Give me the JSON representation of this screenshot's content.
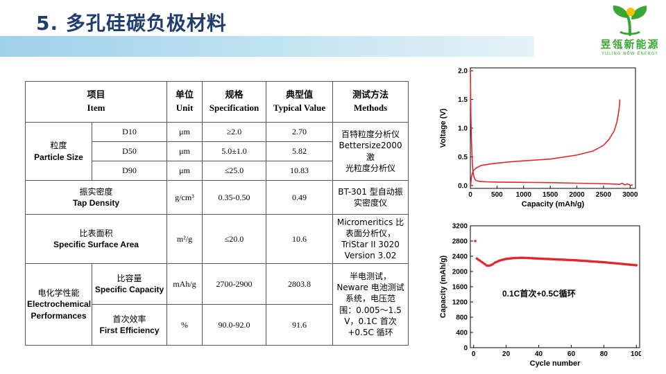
{
  "slide": {
    "title": "5. 多孔硅碳负极材料"
  },
  "logo": {
    "name_cn": "昱瓴新能源",
    "name_en": "YULING NEW ENERGY",
    "colors": {
      "green": "#3ba635",
      "yellow": "#f2c400"
    }
  },
  "table": {
    "headers": [
      {
        "cn": "项目",
        "en": "Item"
      },
      {
        "cn": "单位",
        "en": "Unit"
      },
      {
        "cn": "规格",
        "en": "Specification"
      },
      {
        "cn": "典型值",
        "en": "Typical Value"
      },
      {
        "cn": "测试方法",
        "en": "Methods"
      }
    ],
    "particle_size": {
      "item_cn": "粒度",
      "item_en": "Particle Size",
      "method": [
        "百特粒度分析仪",
        "Bettersize2000 激",
        "光粒度分析仪"
      ],
      "rows": [
        {
          "sub": "D10",
          "unit": "μm",
          "spec": "≥2.0",
          "value": "2.70"
        },
        {
          "sub": "D50",
          "unit": "μm",
          "spec": "5.0±1.0",
          "value": "5.82"
        },
        {
          "sub": "D90",
          "unit": "μm",
          "spec": "≤25.0",
          "value": "10.83"
        }
      ]
    },
    "tap_density": {
      "item_cn": "振实密度",
      "item_en": "Tap Density",
      "unit": "g/cm³",
      "spec": "0.35-0.50",
      "value": "0.49",
      "method": [
        "BT-301 型自动振",
        "实密度仪"
      ]
    },
    "surface_area": {
      "item_cn": "比表面积",
      "item_en": "Specific Surface Area",
      "unit": "m²/g",
      "spec": "≤20.0",
      "value": "10.6",
      "method": [
        "Micromeritics 比",
        "表面分析仪，",
        "TriStar II 3020",
        "Version 3.02"
      ]
    },
    "electrochem": {
      "item_cn": "电化学性能",
      "item_en1": "Electrochemical",
      "item_en2": "Performances",
      "method": [
        "半电测试，",
        "Neware 电池测试",
        "系统，电压范",
        "围：0.005～1.5",
        "V，0.1C 首次",
        "+0.5C 循环"
      ],
      "rows": [
        {
          "sub_cn": "比容量",
          "sub_en": "Specific Capacity",
          "unit": "mAh/g",
          "spec": "2700-2900",
          "value": "2803.8"
        },
        {
          "sub_cn": "首次效率",
          "sub_en": "First Efficiency",
          "unit": "%",
          "spec": "90.0-92.0",
          "value": "91.6"
        }
      ]
    }
  },
  "chart_data": [
    {
      "type": "line",
      "xlabel": "Capacity (mAh/g)",
      "ylabel": "Voltage (V)",
      "xlim": [
        0,
        3100
      ],
      "ylim": [
        -0.05,
        2.05
      ],
      "xticks": [
        0,
        500,
        1000,
        1500,
        2000,
        2500,
        3000
      ],
      "yticks": [
        0.0,
        0.5,
        1.0,
        1.5,
        2.0
      ],
      "color": "#e3262b",
      "series": [
        {
          "x": [
            0,
            10,
            20,
            30,
            40,
            50,
            60,
            80,
            100,
            150,
            200,
            300,
            500,
            1000,
            1500,
            2000,
            2400,
            2600,
            2700,
            2800,
            2850,
            2900,
            2950,
            3000,
            3050
          ],
          "y": [
            2.03,
            1.2,
            0.8,
            0.55,
            0.35,
            0.25,
            0.18,
            0.12,
            0.09,
            0.075,
            0.07,
            0.065,
            0.06,
            0.055,
            0.05,
            0.04,
            0.035,
            0.03,
            0.025,
            0.02,
            0.04,
            0.01,
            0.03,
            0.005,
            0.01
          ]
        },
        {
          "x": [
            5,
            20,
            50,
            100,
            200,
            400,
            700,
            1000,
            1500,
            2000,
            2300,
            2500,
            2600,
            2700,
            2750,
            2780,
            2800,
            2806
          ],
          "y": [
            0.0,
            0.15,
            0.25,
            0.3,
            0.35,
            0.38,
            0.41,
            0.43,
            0.46,
            0.53,
            0.6,
            0.7,
            0.8,
            0.95,
            1.1,
            1.25,
            1.4,
            1.5
          ]
        }
      ]
    },
    {
      "type": "scatter",
      "xlabel": "Cycle number",
      "ylabel": "Capacity (mAh/g)",
      "xlim": [
        -2,
        102
      ],
      "ylim": [
        0,
        3200
      ],
      "xticks": [
        0,
        20,
        40,
        60,
        80,
        100
      ],
      "yticks": [
        0,
        400,
        800,
        1200,
        1600,
        2000,
        2400,
        2800,
        3200
      ],
      "annotation": "0.1C首次+0.5C循环",
      "color": "#e3262b",
      "series": [
        {
          "x": [
            1,
            2,
            3,
            4,
            5,
            6,
            7,
            8,
            9,
            10,
            11,
            12,
            13,
            14,
            15,
            16,
            17,
            18,
            19,
            20,
            21,
            22,
            23,
            24,
            25,
            26,
            27,
            28,
            29,
            30,
            31,
            32,
            33,
            34,
            35,
            36,
            37,
            38,
            39,
            40,
            41,
            42,
            43,
            44,
            45,
            46,
            47,
            48,
            49,
            50,
            51,
            52,
            53,
            54,
            55,
            56,
            57,
            58,
            59,
            60,
            61,
            62,
            63,
            64,
            65,
            66,
            67,
            68,
            69,
            70,
            71,
            72,
            73,
            74,
            75,
            76,
            77,
            78,
            79,
            80,
            81,
            82,
            83,
            84,
            85,
            86,
            87,
            88,
            89,
            90,
            91,
            92,
            93,
            94,
            95,
            96,
            97,
            98,
            99,
            100
          ],
          "y": [
            2800,
            2340,
            2310,
            2280,
            2250,
            2220,
            2190,
            2160,
            2150,
            2155,
            2175,
            2200,
            2230,
            2250,
            2270,
            2285,
            2300,
            2310,
            2320,
            2330,
            2335,
            2340,
            2345,
            2350,
            2352,
            2355,
            2357,
            2358,
            2360,
            2360,
            2358,
            2357,
            2355,
            2353,
            2350,
            2348,
            2346,
            2344,
            2342,
            2340,
            2338,
            2336,
            2334,
            2332,
            2330,
            2328,
            2326,
            2324,
            2322,
            2320,
            2318,
            2316,
            2314,
            2312,
            2310,
            2308,
            2306,
            2304,
            2302,
            2300,
            2298,
            2296,
            2294,
            2291,
            2288,
            2285,
            2282,
            2279,
            2276,
            2273,
            2270,
            2267,
            2264,
            2261,
            2258,
            2255,
            2252,
            2249,
            2246,
            2243,
            2240,
            2236,
            2232,
            2228,
            2224,
            2220,
            2216,
            2212,
            2208,
            2204,
            2200,
            2196,
            2192,
            2188,
            2184,
            2180,
            2176,
            2172,
            2168,
            2164
          ]
        }
      ]
    }
  ]
}
